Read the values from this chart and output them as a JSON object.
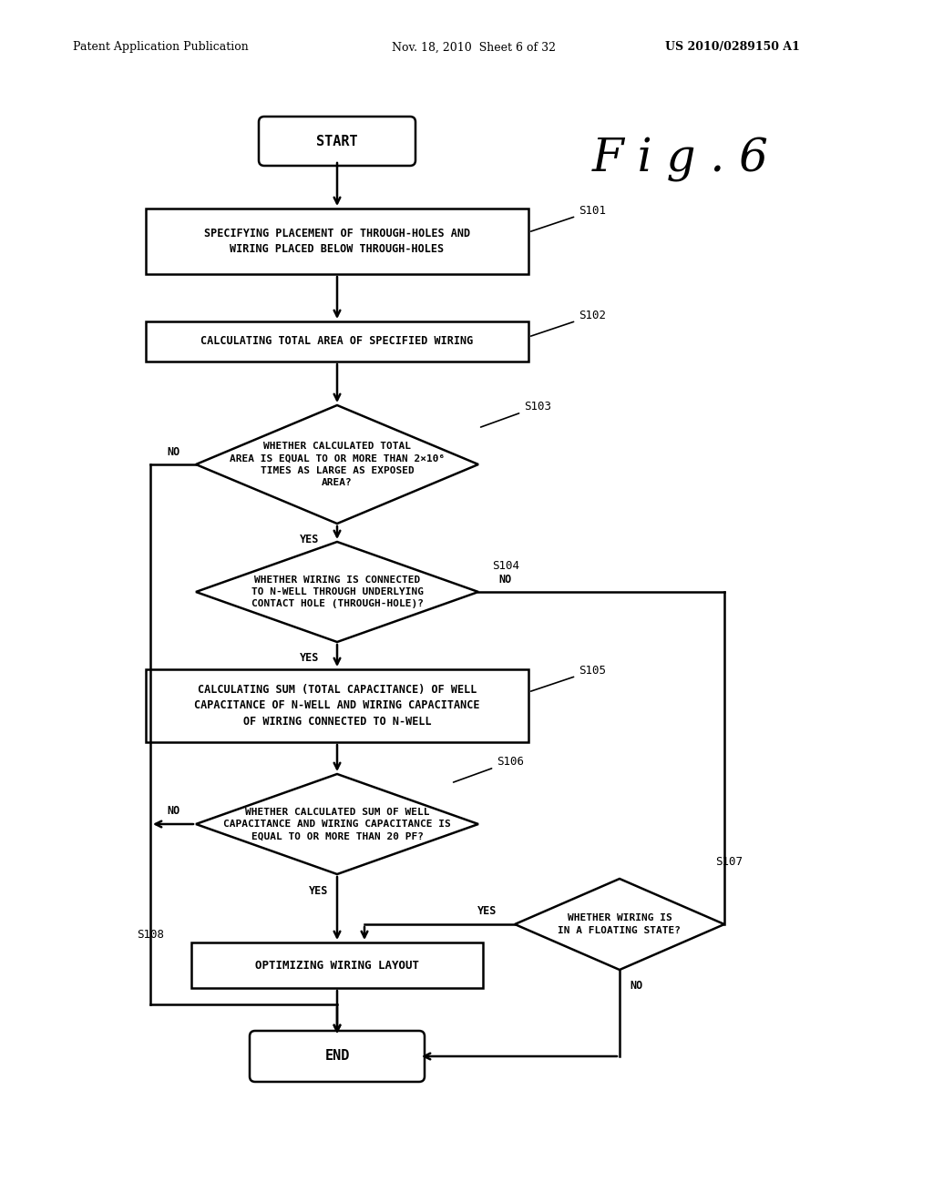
{
  "background_color": "#ffffff",
  "line_color": "#000000",
  "text_color": "#000000",
  "header_left": "Patent Application Publication",
  "header_mid": "Nov. 18, 2010  Sheet 6 of 32",
  "header_right": "US 2010/0289150 A1",
  "fig_label": "F i g . 6",
  "start_label": "START",
  "end_label": "END",
  "s101_label": "SPECIFYING PLACEMENT OF THROUGH-HOLES AND\nWIRING PLACED BELOW THROUGH-HOLES",
  "s102_label": "CALCULATING TOTAL AREA OF SPECIFIED WIRING",
  "s103_label": "WHETHER CALCULATED TOTAL\nAREA IS EQUAL TO OR MORE THAN 2×10⁶\nTIMES AS LARGE AS EXPOSED\nAREA?",
  "s104_label": "WHETHER WIRING IS CONNECTED\nTO N-WELL THROUGH UNDERLYING\nCONTACT HOLE (THROUGH-HOLE)?",
  "s105_label": "CALCULATING SUM (TOTAL CAPACITANCE) OF WELL\nCAPACITANCE OF N-WELL AND WIRING CAPACITANCE\nOF WIRING CONNECTED TO N-WELL",
  "s106_label": "WHETHER CALCULATED SUM OF WELL\nCAPACITANCE AND WIRING CAPACITANCE IS\nEQUAL TO OR MORE THAN 20 PF?",
  "s107_label": "WHETHER WIRING IS\nIN A FLOATING STATE?",
  "s108_label": "OPTIMIZING WIRING LAYOUT"
}
